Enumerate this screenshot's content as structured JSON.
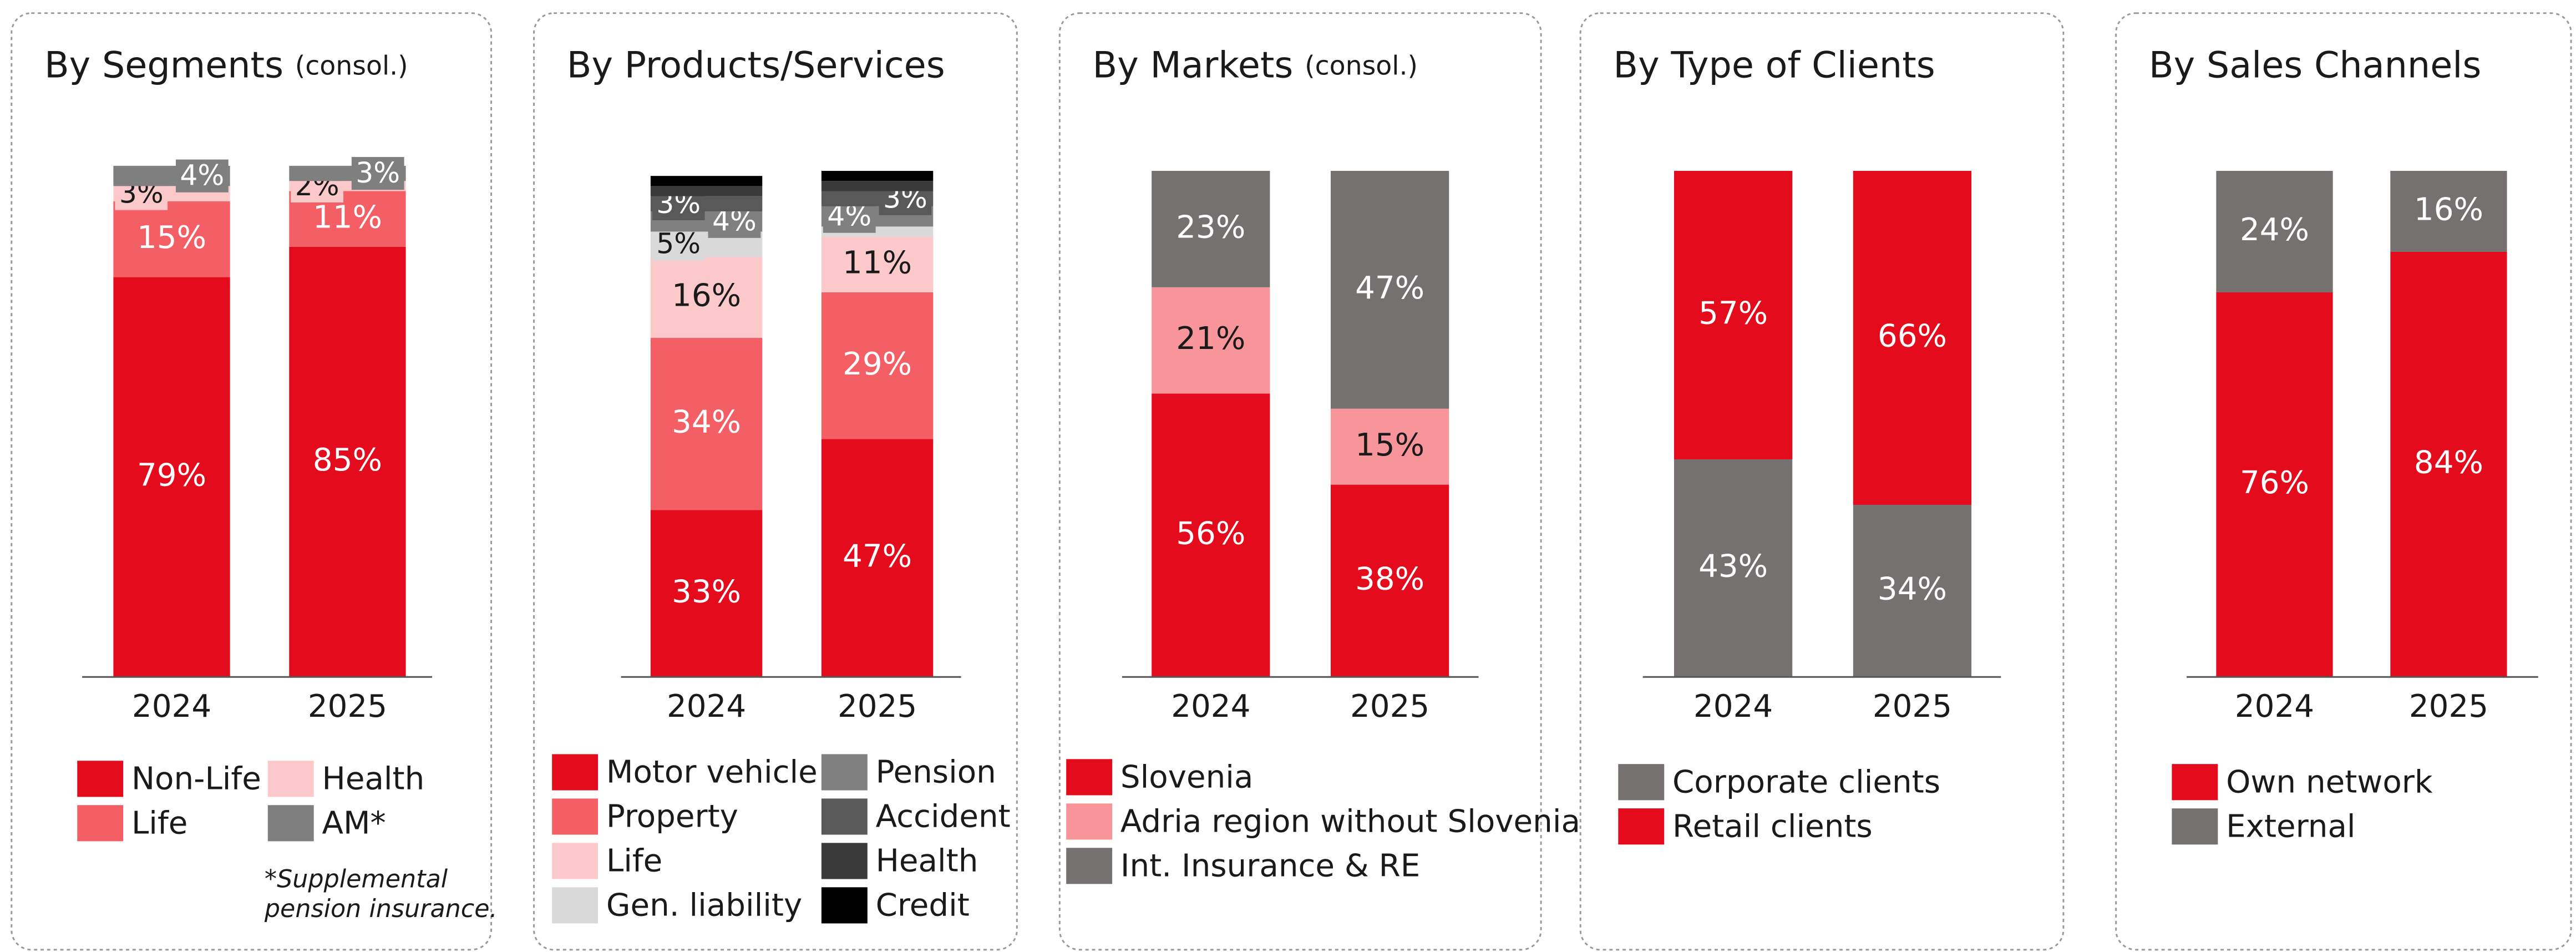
{
  "chart_data": [
    {
      "type": "bar",
      "stacked": true,
      "title": "By Segments",
      "subtitle": "(consol.)",
      "categories": [
        "2024",
        "2025"
      ],
      "ylim": [
        0,
        100
      ],
      "series": [
        {
          "name": "Non-Life",
          "color": "#e30b1c",
          "values": [
            79,
            85
          ],
          "value_labels": [
            "79%",
            "85%"
          ]
        },
        {
          "name": "Life",
          "color": "#f45f66",
          "values": [
            15,
            11
          ],
          "value_labels": [
            "15%",
            "11%"
          ]
        },
        {
          "name": "Health",
          "color": "#fcc9cb",
          "values": [
            3,
            2
          ],
          "value_labels": [
            "3%",
            "2%"
          ]
        },
        {
          "name": "AM*",
          "color": "#7f7f7f",
          "values": [
            4,
            3
          ],
          "value_labels": [
            "4%",
            "3%"
          ]
        }
      ],
      "note": [
        "*Supplemental",
        "pension insurance."
      ]
    },
    {
      "type": "bar",
      "stacked": true,
      "title": "By Products/Services",
      "categories": [
        "2024",
        "2025"
      ],
      "ylim": [
        0,
        100
      ],
      "series": [
        {
          "name": "Motor vehicle",
          "color": "#e30b1c",
          "values": [
            33,
            47
          ],
          "value_labels": [
            "33%",
            "47%"
          ]
        },
        {
          "name": "Property",
          "color": "#f45f66",
          "values": [
            34,
            29
          ],
          "value_labels": [
            "34%",
            "29%"
          ]
        },
        {
          "name": "Life",
          "color": "#fcc9cb",
          "values": [
            16,
            11
          ],
          "value_labels": [
            "16%",
            "11%"
          ]
        },
        {
          "name": "Gen. liability",
          "color": "#d9d9d9",
          "values": [
            5,
            2
          ],
          "value_labels": [
            "5%",
            null
          ]
        },
        {
          "name": "Pension",
          "color": "#808080",
          "values": [
            4,
            4
          ],
          "value_labels": [
            "4%",
            "4%"
          ]
        },
        {
          "name": "Accident",
          "color": "#595959",
          "values": [
            3,
            3
          ],
          "value_labels": [
            "3%",
            "3%"
          ]
        },
        {
          "name": "Health",
          "color": "#3a3a3a",
          "values": [
            2,
            2
          ],
          "value_labels": [
            null,
            null
          ]
        },
        {
          "name": "Credit",
          "color": "#000000",
          "values": [
            2,
            2
          ],
          "value_labels": [
            null,
            null
          ]
        }
      ]
    },
    {
      "type": "bar",
      "stacked": true,
      "title": "By Markets",
      "subtitle": "(consol.)",
      "categories": [
        "2024",
        "2025"
      ],
      "ylim": [
        0,
        100
      ],
      "series": [
        {
          "name": "Slovenia",
          "color": "#e30b1c",
          "values": [
            56,
            38
          ],
          "value_labels": [
            "56%",
            "38%"
          ]
        },
        {
          "name": "Adria region without Slovenia",
          "color": "#f8959a",
          "values": [
            21,
            15
          ],
          "value_labels": [
            "21%",
            "15%"
          ]
        },
        {
          "name": "Int. Insurance & RE",
          "color": "#767171",
          "values": [
            23,
            47
          ],
          "value_labels": [
            "23%",
            "47%"
          ]
        }
      ]
    },
    {
      "type": "bar",
      "stacked": true,
      "title": "By Type of Clients",
      "categories": [
        "2024",
        "2025"
      ],
      "ylim": [
        0,
        100
      ],
      "series": [
        {
          "name": "Corporate clients",
          "color": "#767171",
          "values": [
            43,
            34
          ],
          "value_labels": [
            "43%",
            "34%"
          ]
        },
        {
          "name": "Retail clients",
          "color": "#e30b1c",
          "values": [
            57,
            66
          ],
          "value_labels": [
            "57%",
            "66%"
          ]
        }
      ]
    },
    {
      "type": "bar",
      "stacked": true,
      "title": "By Sales Channels",
      "categories": [
        "2024",
        "2025"
      ],
      "ylim": [
        0,
        100
      ],
      "series": [
        {
          "name": "Own network",
          "color": "#e30b1c",
          "values": [
            76,
            84
          ],
          "value_labels": [
            "76%",
            "84%"
          ]
        },
        {
          "name": "External",
          "color": "#767171",
          "values": [
            24,
            16
          ],
          "value_labels": [
            "24%",
            "16%"
          ]
        }
      ]
    }
  ]
}
